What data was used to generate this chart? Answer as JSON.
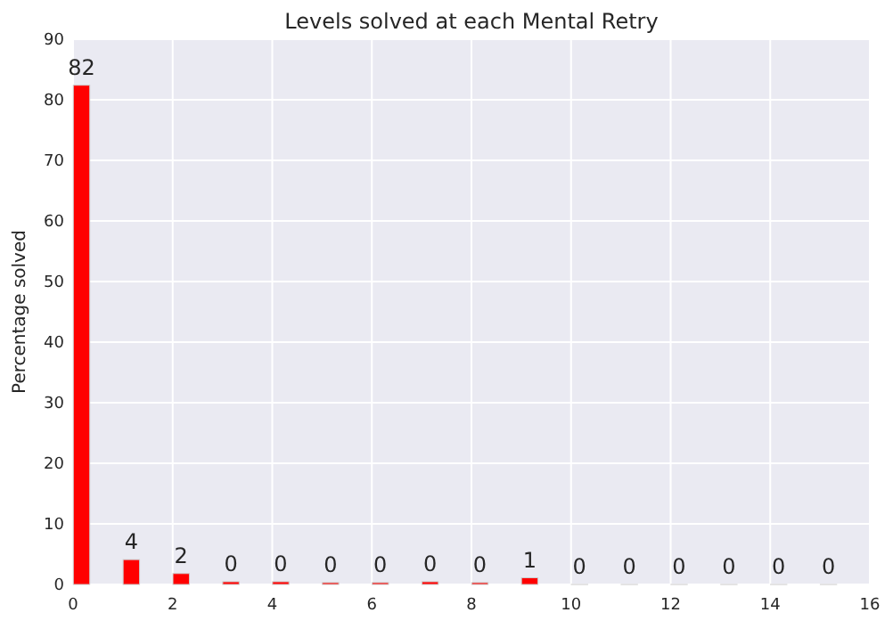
{
  "chart_data": {
    "type": "bar",
    "title": "Levels solved at each Mental Retry",
    "ylabel": "Percentage solved",
    "x": [
      0.17,
      1.17,
      2.17,
      3.17,
      4.17,
      5.17,
      6.17,
      7.17,
      8.17,
      9.17,
      10.17,
      11.17,
      12.17,
      13.17,
      14.17,
      15.17
    ],
    "values": [
      82.4,
      4.1,
      1.8,
      0.45,
      0.45,
      0.3,
      0.3,
      0.45,
      0.3,
      1.1,
      0,
      0,
      0,
      0,
      0,
      0
    ],
    "value_labels": [
      "82",
      "4",
      "2",
      "0",
      "0",
      "0",
      "0",
      "0",
      "0",
      "1",
      "0",
      "0",
      "0",
      "0",
      "0",
      "0"
    ],
    "color": "#ff0000",
    "xlim": [
      0,
      16
    ],
    "xticks": [
      0,
      2,
      4,
      6,
      8,
      10,
      12,
      14,
      16
    ],
    "ylim": [
      0,
      90
    ],
    "yticks": [
      0,
      10,
      20,
      30,
      40,
      50,
      60,
      70,
      80,
      90
    ],
    "grid": true
  }
}
